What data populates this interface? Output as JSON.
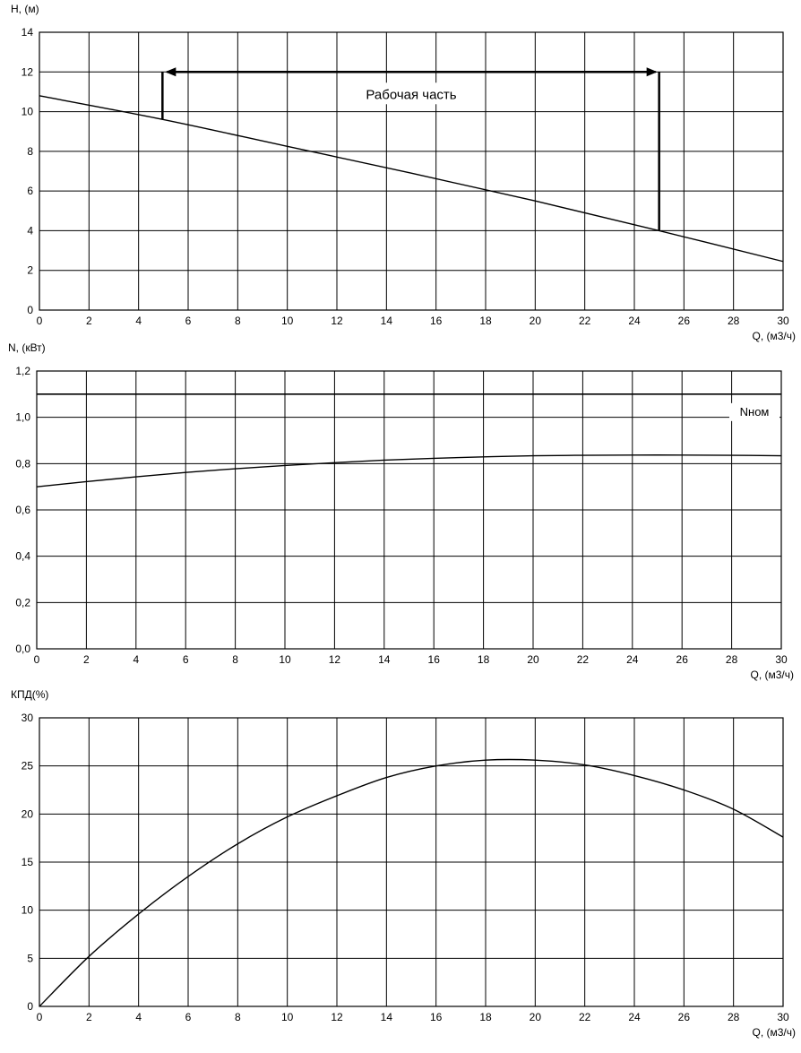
{
  "chart_data": [
    {
      "type": "line",
      "ylabel": "H, (м)",
      "xlabel": "Q, (м3/ч)",
      "xlim": [
        0,
        30
      ],
      "ylim": [
        0,
        14
      ],
      "xticks": [
        "0",
        "2",
        "4",
        "6",
        "8",
        "10",
        "12",
        "14",
        "16",
        "18",
        "20",
        "22",
        "24",
        "26",
        "28",
        "30"
      ],
      "yticks": [
        "0",
        "2",
        "4",
        "6",
        "8",
        "10",
        "12",
        "14"
      ],
      "grid": true,
      "series": [
        {
          "x": [
            0,
            5,
            10,
            15,
            20,
            25,
            30
          ],
          "y": [
            10.8,
            9.6,
            8.25,
            6.9,
            5.5,
            4.0,
            2.45
          ]
        }
      ],
      "annotation": {
        "text": "Рабочая часть",
        "range": [
          5,
          25
        ],
        "bracket_y": 12,
        "left_drop_y": 9.6,
        "right_drop_y": 4.0
      }
    },
    {
      "type": "line",
      "ylabel": "N, (кВт)",
      "xlabel": "Q, (м3/ч)",
      "xlim": [
        0,
        30
      ],
      "ylim": [
        0,
        1.2
      ],
      "xticks": [
        "0",
        "2",
        "4",
        "6",
        "8",
        "10",
        "12",
        "14",
        "16",
        "18",
        "20",
        "22",
        "24",
        "26",
        "28",
        "30"
      ],
      "yticks": [
        "0,0",
        "0,2",
        "0,4",
        "0,6",
        "0,8",
        "1,0",
        "1,2"
      ],
      "grid": true,
      "series": [
        {
          "x": [
            0,
            2,
            4,
            6,
            8,
            10,
            12,
            14,
            16,
            18,
            20,
            22,
            24,
            26,
            28,
            30
          ],
          "y": [
            0.7,
            0.722,
            0.743,
            0.762,
            0.778,
            0.792,
            0.804,
            0.815,
            0.823,
            0.829,
            0.834,
            0.836,
            0.837,
            0.837,
            0.836,
            0.834
          ]
        },
        {
          "name": "Nном",
          "x": [
            0,
            30
          ],
          "y": [
            1.1,
            1.1
          ]
        }
      ]
    },
    {
      "type": "line",
      "ylabel": "КПД(%)",
      "xlabel": "Q, (м3/ч)",
      "xlim": [
        0,
        30
      ],
      "ylim": [
        0,
        30
      ],
      "xticks": [
        "0",
        "2",
        "4",
        "6",
        "8",
        "10",
        "12",
        "14",
        "16",
        "18",
        "20",
        "22",
        "24",
        "26",
        "28",
        "30"
      ],
      "yticks": [
        "0",
        "5",
        "10",
        "15",
        "20",
        "25",
        "30"
      ],
      "grid": true,
      "series": [
        {
          "x": [
            0,
            2,
            4,
            6,
            8,
            10,
            12,
            14,
            16,
            18,
            20,
            22,
            24,
            26,
            28,
            30
          ],
          "y": [
            0,
            5.2,
            9.6,
            13.5,
            16.9,
            19.7,
            21.9,
            23.8,
            25.0,
            25.6,
            25.6,
            25.1,
            24.0,
            22.5,
            20.5,
            17.6
          ]
        }
      ]
    }
  ]
}
